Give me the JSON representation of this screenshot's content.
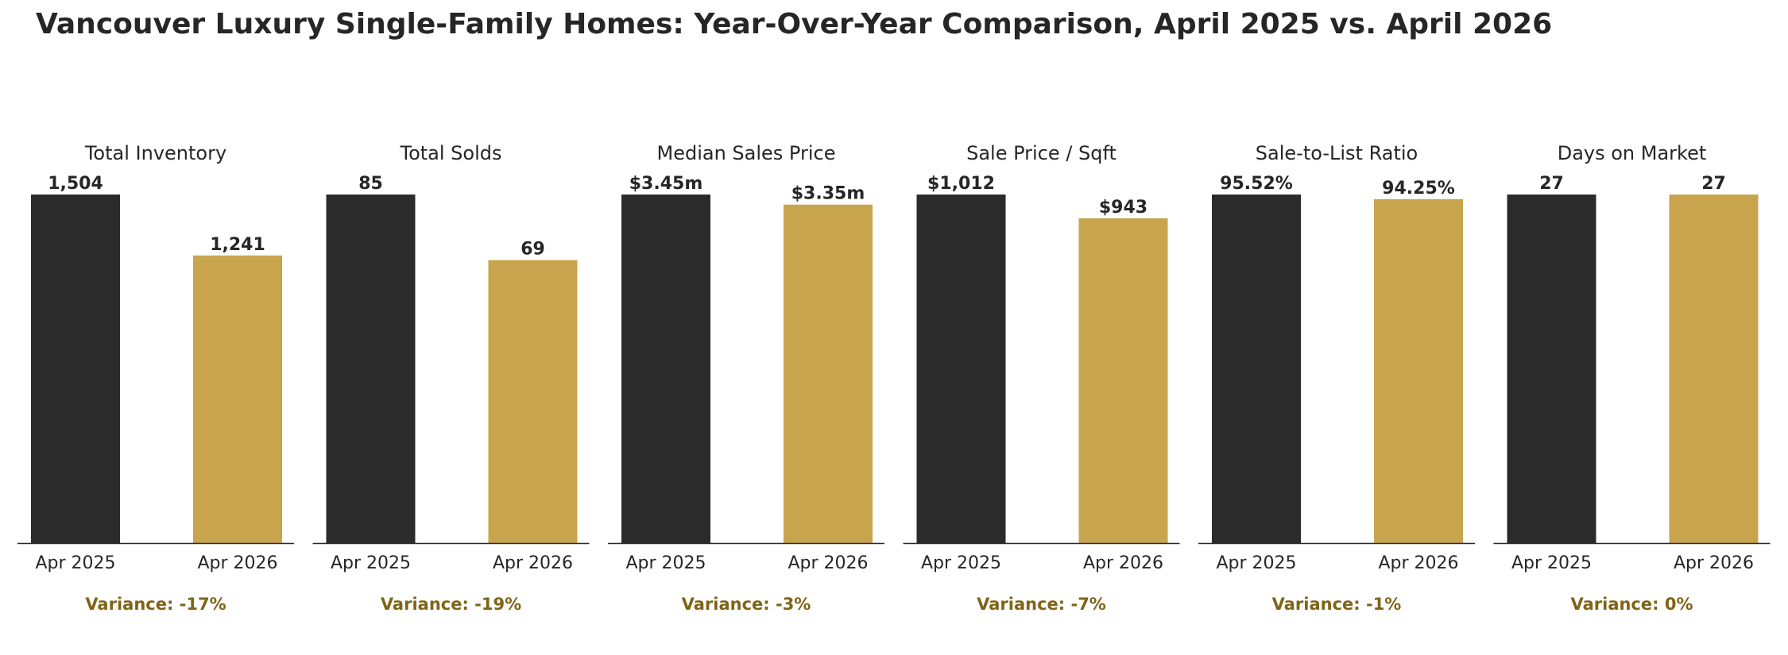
{
  "title": "Vancouver Luxury Single-Family Homes: Year-Over-Year Comparison, April 2025 vs. April 2026",
  "colors": {
    "apr_2025": "#2b2b2b",
    "apr_2026": "#c8a44c",
    "variance_text": "#7f6418",
    "axis": "#262626"
  },
  "chart_data": [
    {
      "type": "bar",
      "title": "Total Inventory",
      "categories": [
        "Apr 2025",
        "Apr 2026"
      ],
      "values": [
        1504,
        1241
      ],
      "value_labels": [
        "1,504",
        "1,241"
      ],
      "ylim": [
        0,
        1504
      ],
      "variance": "Variance: -17%"
    },
    {
      "type": "bar",
      "title": "Total Solds",
      "categories": [
        "Apr 2025",
        "Apr 2026"
      ],
      "values": [
        85,
        69
      ],
      "value_labels": [
        "85",
        "69"
      ],
      "ylim": [
        0,
        85
      ],
      "variance": "Variance: -19%"
    },
    {
      "type": "bar",
      "title": "Median Sales Price",
      "categories": [
        "Apr 2025",
        "Apr 2026"
      ],
      "values": [
        3.45,
        3.35
      ],
      "value_labels": [
        "$3.45m",
        "$3.35m"
      ],
      "ylim": [
        0,
        3.45
      ],
      "variance": "Variance: -3%"
    },
    {
      "type": "bar",
      "title": "Sale Price / Sqft",
      "categories": [
        "Apr 2025",
        "Apr 2026"
      ],
      "values": [
        1012,
        943
      ],
      "value_labels": [
        "$1,012",
        "$943"
      ],
      "ylim": [
        0,
        1012
      ],
      "variance": "Variance: -7%"
    },
    {
      "type": "bar",
      "title": "Sale-to-List Ratio",
      "categories": [
        "Apr 2025",
        "Apr 2026"
      ],
      "values": [
        95.52,
        94.25
      ],
      "value_labels": [
        "95.52%",
        "94.25%"
      ],
      "ylim": [
        0,
        95.52
      ],
      "variance": "Variance: -1%"
    },
    {
      "type": "bar",
      "title": "Days on Market",
      "categories": [
        "Apr 2025",
        "Apr 2026"
      ],
      "values": [
        27,
        27
      ],
      "value_labels": [
        "27",
        "27"
      ],
      "ylim": [
        0,
        27
      ],
      "variance": "Variance: 0%"
    }
  ]
}
